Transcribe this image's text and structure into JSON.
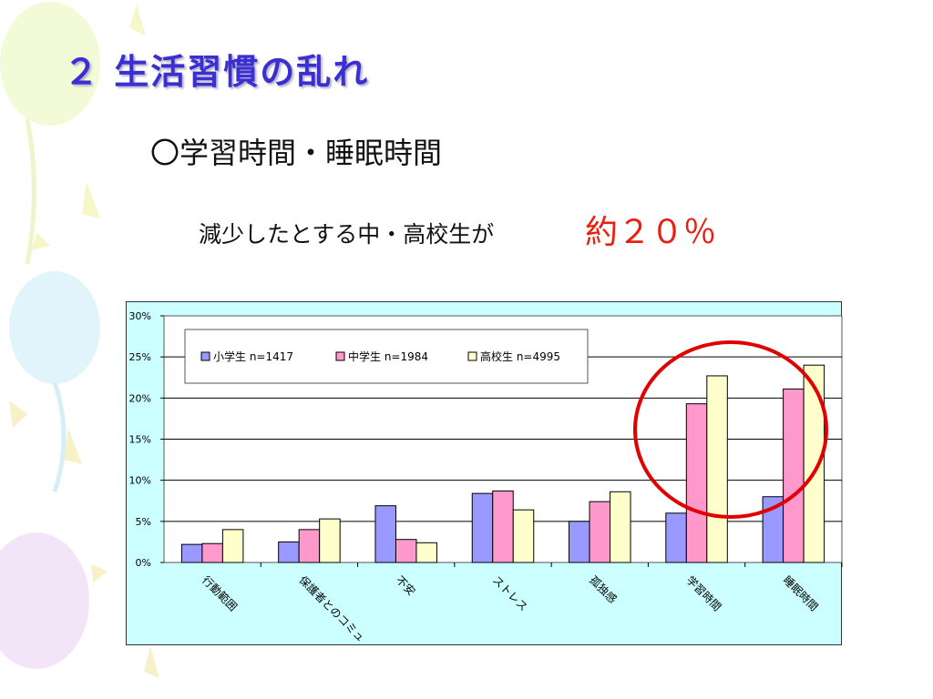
{
  "slide": {
    "title": "２ 生活習慣の乱れ",
    "subtitle": "〇学習時間・睡眠時間",
    "statement": "減少したとする中・高校生が",
    "highlight": "約２０％"
  },
  "colors": {
    "title": "#3a2fd0",
    "highlight": "#e8200f",
    "chart_background": "#ccffff",
    "plot_background": "#ffffff",
    "series": [
      "#9999ff",
      "#ff99cc",
      "#ffffcc"
    ],
    "circle": "#e00000"
  },
  "chart_data": {
    "type": "bar",
    "categories": [
      "行動範囲",
      "保護者とのコミュ",
      "不安",
      "ストレス",
      "孤独感",
      "学習時間",
      "睡眠時間"
    ],
    "series": [
      {
        "name": "小学生 n=1417",
        "values": [
          2.2,
          2.5,
          6.9,
          8.4,
          5.0,
          6.0,
          8.0
        ]
      },
      {
        "name": "中学生 n=1984",
        "values": [
          2.3,
          4.0,
          2.8,
          8.7,
          7.4,
          19.3,
          21.1
        ]
      },
      {
        "name": "高校生 n=4995",
        "values": [
          4.0,
          5.3,
          2.4,
          6.4,
          8.6,
          22.7,
          24.0
        ]
      }
    ],
    "yticks": [
      "0%",
      "5%",
      "10%",
      "15%",
      "20%",
      "25%",
      "30%"
    ],
    "ylim": [
      0,
      30
    ],
    "grid": true,
    "legend": "top-left",
    "annotation": "red circle around 学習時間 and 睡眠時間"
  }
}
